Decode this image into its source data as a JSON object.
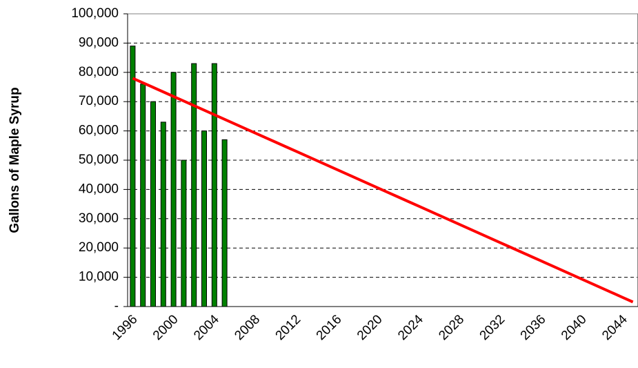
{
  "chart_data": {
    "type": "bar",
    "ylabel": "Gallons of Maple Syrup",
    "categories": [
      "1996",
      null,
      null,
      null,
      "2000",
      null,
      null,
      null,
      "2004",
      null,
      null,
      null,
      "2008",
      null,
      null,
      null,
      "2012",
      null,
      null,
      null,
      "2016",
      null,
      null,
      null,
      "2020",
      null,
      null,
      null,
      "2024",
      null,
      null,
      null,
      "2028",
      null,
      null,
      null,
      "2032",
      null,
      null,
      null,
      "2036",
      null,
      null,
      null,
      "2040",
      null,
      null,
      null,
      "2044",
      null
    ],
    "series": [
      {
        "type": "bar",
        "color": "#008000",
        "values": [
          89000,
          76000,
          70000,
          63000,
          80000,
          50000,
          83000,
          60000,
          83000,
          57000,
          null,
          null,
          null,
          null,
          null,
          null,
          null,
          null,
          null,
          null,
          null,
          null,
          null,
          null,
          null,
          null,
          null,
          null,
          null,
          null,
          null,
          null,
          null,
          null,
          null,
          null,
          null,
          null,
          null,
          null,
          null,
          null,
          null,
          null,
          null,
          null,
          null,
          null,
          null,
          null
        ]
      },
      {
        "type": "line",
        "color": "#ff0000",
        "values": [
          78000,
          76440,
          74880,
          73320,
          71760,
          70200,
          68640,
          67080,
          65520,
          63960,
          62400,
          60840,
          59280,
          57720,
          56160,
          54600,
          53040,
          51480,
          49920,
          48360,
          46800,
          45240,
          43680,
          42120,
          40560,
          39000,
          37440,
          35880,
          34320,
          32760,
          31200,
          29640,
          28080,
          26520,
          24960,
          23400,
          21840,
          20280,
          18720,
          17160,
          15600,
          14040,
          12480,
          10920,
          9360,
          7800,
          6240,
          4680,
          3120,
          1560
        ]
      }
    ],
    "ylim": [
      0,
      100000
    ],
    "yticks": [
      {
        "value": 0,
        "label": "-"
      },
      {
        "value": 10000,
        "label": "10,000"
      },
      {
        "value": 20000,
        "label": "20,000"
      },
      {
        "value": 30000,
        "label": "30,000"
      },
      {
        "value": 40000,
        "label": "40,000"
      },
      {
        "value": 50000,
        "label": "50,000"
      },
      {
        "value": 60000,
        "label": "60,000"
      },
      {
        "value": 70000,
        "label": "70,000"
      },
      {
        "value": 80000,
        "label": "80,000"
      },
      {
        "value": 90000,
        "label": "90,000"
      },
      {
        "value": 100000,
        "label": "100,000"
      }
    ],
    "grid": true
  }
}
